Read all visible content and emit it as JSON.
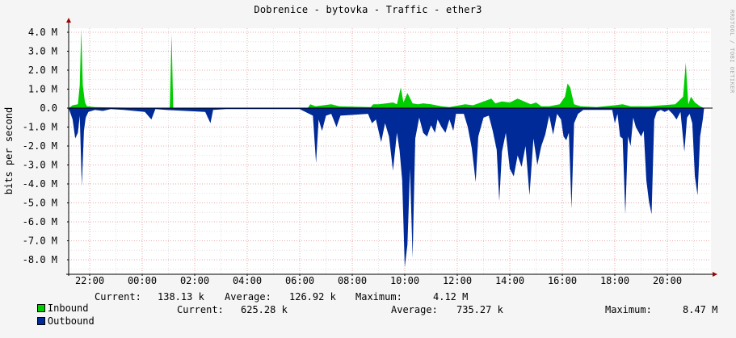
{
  "title": "Dobrenice - bytovka - Traffic - ether3",
  "watermark": "RRDTOOL / TOBI OETIKER",
  "chart_data": {
    "type": "area",
    "ylabel": "bits per second",
    "ylim": [
      -8.5,
      4.5
    ],
    "y_ticks": [
      {
        "v": 4,
        "label": "4.0 M"
      },
      {
        "v": 3,
        "label": "3.0 M"
      },
      {
        "v": 2,
        "label": "2.0 M"
      },
      {
        "v": 1,
        "label": "1.0 M"
      },
      {
        "v": 0,
        "label": "0.0"
      },
      {
        "v": -1,
        "label": "-1.0 M"
      },
      {
        "v": -2,
        "label": "-2.0 M"
      },
      {
        "v": -3,
        "label": "-3.0 M"
      },
      {
        "v": -4,
        "label": "-4.0 M"
      },
      {
        "v": -5,
        "label": "-5.0 M"
      },
      {
        "v": -6,
        "label": "-6.0 M"
      },
      {
        "v": -7,
        "label": "-7.0 M"
      },
      {
        "v": -8,
        "label": "-8.0 M"
      }
    ],
    "x_ticks": [
      "22:00",
      "00:00",
      "02:00",
      "04:00",
      "06:00",
      "08:00",
      "10:00",
      "12:00",
      "14:00",
      "16:00",
      "18:00",
      "20:00"
    ],
    "grid": true,
    "series": [
      {
        "name": "Inbound",
        "color": "#00cc00",
        "points": [
          [
            21.2,
            0
          ],
          [
            21.35,
            0.15
          ],
          [
            21.55,
            0.2
          ],
          [
            21.62,
            1.2
          ],
          [
            21.68,
            4.15
          ],
          [
            21.74,
            1.2
          ],
          [
            21.82,
            0.3
          ],
          [
            21.9,
            0.1
          ],
          [
            22.2,
            0.05
          ],
          [
            23.5,
            0.02
          ],
          [
            25.05,
            0
          ],
          [
            25.12,
            3.9
          ],
          [
            25.18,
            0
          ],
          [
            26.5,
            0
          ],
          [
            29.5,
            0
          ],
          [
            30.3,
            0
          ],
          [
            30.4,
            0.2
          ],
          [
            30.6,
            0.1
          ],
          [
            30.9,
            0.15
          ],
          [
            31.2,
            0.2
          ],
          [
            31.5,
            0.1
          ],
          [
            32.7,
            0.05
          ],
          [
            32.8,
            0.2
          ],
          [
            33.0,
            0.2
          ],
          [
            33.3,
            0.25
          ],
          [
            33.55,
            0.3
          ],
          [
            33.7,
            0.2
          ],
          [
            33.85,
            1.1
          ],
          [
            33.95,
            0.3
          ],
          [
            34.1,
            0.8
          ],
          [
            34.3,
            0.25
          ],
          [
            34.5,
            0.2
          ],
          [
            34.7,
            0.25
          ],
          [
            35.0,
            0.2
          ],
          [
            35.4,
            0.1
          ],
          [
            35.7,
            0.05
          ],
          [
            36.3,
            0.2
          ],
          [
            36.6,
            0.15
          ],
          [
            36.9,
            0.3
          ],
          [
            37.3,
            0.5
          ],
          [
            37.45,
            0.25
          ],
          [
            37.7,
            0.35
          ],
          [
            38.0,
            0.3
          ],
          [
            38.3,
            0.5
          ],
          [
            38.55,
            0.35
          ],
          [
            38.8,
            0.2
          ],
          [
            39.0,
            0.3
          ],
          [
            39.2,
            0.1
          ],
          [
            39.5,
            0.1
          ],
          [
            39.9,
            0.2
          ],
          [
            40.1,
            0.6
          ],
          [
            40.2,
            1.3
          ],
          [
            40.3,
            1.1
          ],
          [
            40.45,
            0.2
          ],
          [
            40.7,
            0.1
          ],
          [
            41.3,
            0.05
          ],
          [
            42.0,
            0.15
          ],
          [
            42.3,
            0.2
          ],
          [
            42.6,
            0.1
          ],
          [
            43.0,
            0.1
          ],
          [
            43.3,
            0.1
          ],
          [
            43.8,
            0.15
          ],
          [
            44.3,
            0.2
          ],
          [
            44.6,
            0.6
          ],
          [
            44.7,
            2.4
          ],
          [
            44.8,
            0.2
          ],
          [
            44.9,
            0.6
          ],
          [
            45.05,
            0.3
          ],
          [
            45.25,
            0.1
          ],
          [
            45.4,
            0
          ]
        ]
      },
      {
        "name": "Outbound",
        "color": "#002a97",
        "points": [
          [
            21.2,
            0
          ],
          [
            21.35,
            -0.6
          ],
          [
            21.45,
            -1.6
          ],
          [
            21.55,
            -1.3
          ],
          [
            21.62,
            -0.4
          ],
          [
            21.7,
            -4.1
          ],
          [
            21.78,
            -1.2
          ],
          [
            21.85,
            -0.5
          ],
          [
            21.95,
            -0.2
          ],
          [
            22.2,
            -0.1
          ],
          [
            22.5,
            -0.15
          ],
          [
            22.8,
            -0.05
          ],
          [
            23.3,
            -0.1
          ],
          [
            23.7,
            -0.15
          ],
          [
            24.1,
            -0.2
          ],
          [
            24.35,
            -0.6
          ],
          [
            24.5,
            -0.05
          ],
          [
            24.9,
            -0.1
          ],
          [
            26.4,
            -0.2
          ],
          [
            26.6,
            -0.8
          ],
          [
            26.7,
            -0.1
          ],
          [
            27.2,
            -0.05
          ],
          [
            28.5,
            -0.05
          ],
          [
            29.0,
            -0.05
          ],
          [
            29.7,
            -0.05
          ],
          [
            30.0,
            -0.05
          ],
          [
            30.5,
            -0.4
          ],
          [
            30.62,
            -2.9
          ],
          [
            30.72,
            -0.6
          ],
          [
            30.85,
            -1.2
          ],
          [
            31.0,
            -0.4
          ],
          [
            31.2,
            -0.3
          ],
          [
            31.4,
            -1.0
          ],
          [
            31.55,
            -0.4
          ],
          [
            32.6,
            -0.3
          ],
          [
            32.75,
            -0.8
          ],
          [
            32.9,
            -0.6
          ],
          [
            33.1,
            -1.8
          ],
          [
            33.25,
            -0.8
          ],
          [
            33.4,
            -1.5
          ],
          [
            33.55,
            -3.3
          ],
          [
            33.7,
            -1.3
          ],
          [
            33.8,
            -2.2
          ],
          [
            33.9,
            -3.8
          ],
          [
            34.0,
            -8.4
          ],
          [
            34.1,
            -7.2
          ],
          [
            34.2,
            -3.2
          ],
          [
            34.3,
            -7.9
          ],
          [
            34.4,
            -1.6
          ],
          [
            34.55,
            -0.5
          ],
          [
            34.7,
            -1.3
          ],
          [
            34.85,
            -1.5
          ],
          [
            35.0,
            -0.9
          ],
          [
            35.15,
            -1.3
          ],
          [
            35.25,
            -0.6
          ],
          [
            35.4,
            -1.0
          ],
          [
            35.55,
            -1.3
          ],
          [
            35.7,
            -0.6
          ],
          [
            35.85,
            -1.2
          ],
          [
            35.95,
            -0.3
          ],
          [
            36.25,
            -0.3
          ],
          [
            36.4,
            -1.0
          ],
          [
            36.55,
            -2.1
          ],
          [
            36.7,
            -3.9
          ],
          [
            36.8,
            -1.5
          ],
          [
            37.0,
            -0.5
          ],
          [
            37.2,
            -0.4
          ],
          [
            37.35,
            -1.2
          ],
          [
            37.5,
            -2.2
          ],
          [
            37.6,
            -4.9
          ],
          [
            37.7,
            -2.3
          ],
          [
            37.85,
            -1.3
          ],
          [
            38.0,
            -3.2
          ],
          [
            38.15,
            -3.6
          ],
          [
            38.3,
            -2.5
          ],
          [
            38.45,
            -3.1
          ],
          [
            38.6,
            -2.0
          ],
          [
            38.75,
            -4.6
          ],
          [
            38.9,
            -1.6
          ],
          [
            39.05,
            -3.0
          ],
          [
            39.2,
            -2.0
          ],
          [
            39.35,
            -1.4
          ],
          [
            39.5,
            -0.4
          ],
          [
            39.65,
            -1.4
          ],
          [
            39.8,
            -0.3
          ],
          [
            39.95,
            -0.6
          ],
          [
            40.05,
            -1.5
          ],
          [
            40.15,
            -1.7
          ],
          [
            40.25,
            -1.3
          ],
          [
            40.35,
            -5.3
          ],
          [
            40.45,
            -0.8
          ],
          [
            40.6,
            -0.3
          ],
          [
            40.8,
            -0.1
          ],
          [
            41.3,
            -0.1
          ],
          [
            41.9,
            -0.1
          ],
          [
            42.0,
            -0.8
          ],
          [
            42.1,
            -0.3
          ],
          [
            42.2,
            -1.5
          ],
          [
            42.3,
            -1.6
          ],
          [
            42.4,
            -5.6
          ],
          [
            42.5,
            -1.5
          ],
          [
            42.6,
            -2.0
          ],
          [
            42.7,
            -0.5
          ],
          [
            42.8,
            -1.0
          ],
          [
            43.0,
            -1.5
          ],
          [
            43.1,
            -1.2
          ],
          [
            43.2,
            -3.8
          ],
          [
            43.3,
            -4.9
          ],
          [
            43.4,
            -5.6
          ],
          [
            43.5,
            -0.6
          ],
          [
            43.6,
            -0.2
          ],
          [
            43.75,
            -0.1
          ],
          [
            43.9,
            -0.2
          ],
          [
            44.05,
            -0.1
          ],
          [
            44.2,
            -0.3
          ],
          [
            44.35,
            -0.6
          ],
          [
            44.5,
            -0.2
          ],
          [
            44.65,
            -2.3
          ],
          [
            44.75,
            -0.5
          ],
          [
            44.85,
            -0.3
          ],
          [
            44.95,
            -0.8
          ],
          [
            45.05,
            -3.6
          ],
          [
            45.15,
            -4.6
          ],
          [
            45.25,
            -1.5
          ],
          [
            45.35,
            -0.6
          ],
          [
            45.4,
            0
          ]
        ]
      }
    ]
  },
  "legend": [
    {
      "name": "Inbound",
      "current_label": "Current:",
      "current": "138.13 k",
      "average_label": "Average:",
      "average": "126.92 k",
      "maximum_label": "Maximum:",
      "maximum": "4.12 M"
    },
    {
      "name": "Outbound",
      "current_label": "Current:",
      "current": "625.28 k",
      "average_label": "Average:",
      "average": "735.27 k",
      "maximum_label": "Maximum:",
      "maximum": "8.47 M"
    }
  ]
}
